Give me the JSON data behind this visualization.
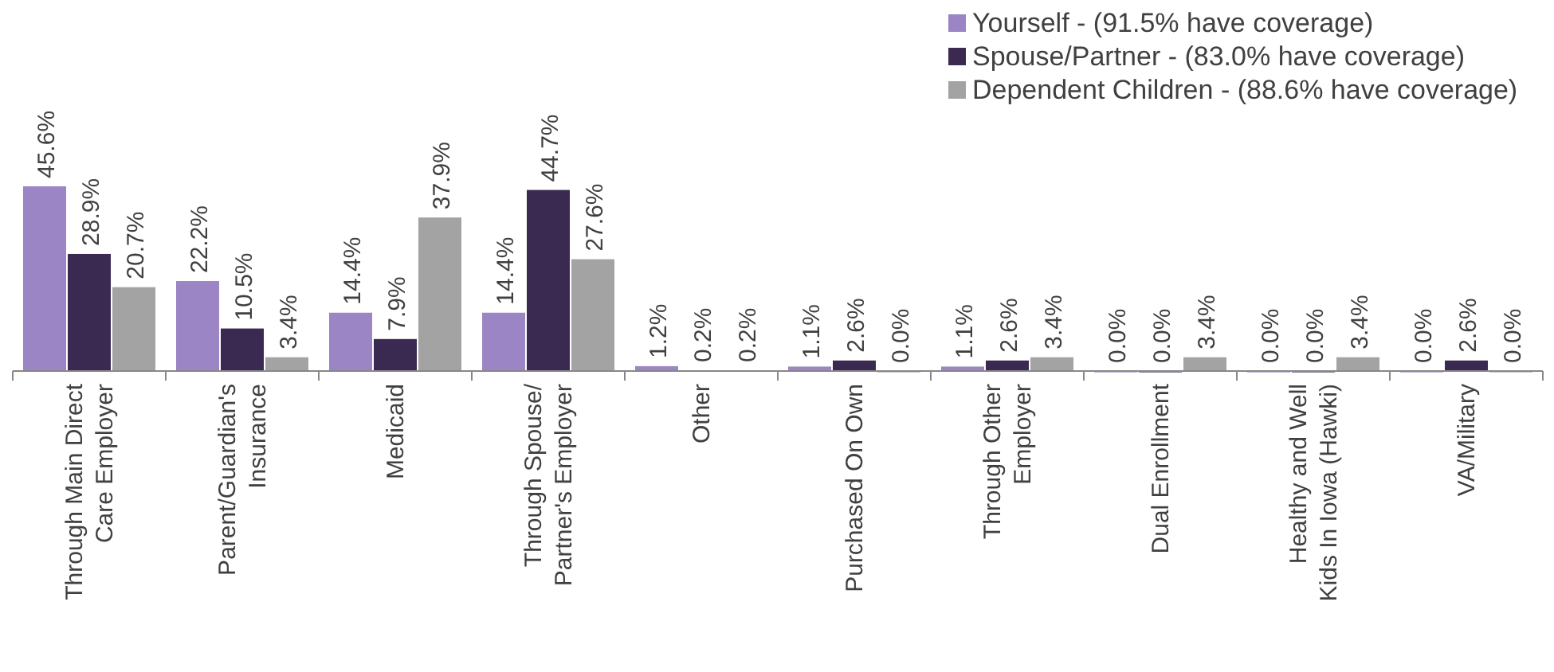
{
  "chart_data": {
    "type": "bar",
    "categories": [
      "Through Main Direct Care Employer",
      "Parent/Guardian's Insurance",
      "Medicaid",
      "Through Spouse/ Partner's Employer",
      "Other",
      "Purchased On Own",
      "Through Other Employer",
      "Dual Enrollment",
      "Healthy and Well Kids In Iowa (Hawki)",
      "VA/Military"
    ],
    "series": [
      {
        "name": "Yourself - (91.5% have coverage)",
        "color": "#9b85c4",
        "values": [
          45.6,
          22.2,
          14.4,
          14.4,
          1.2,
          1.1,
          1.1,
          0.0,
          0.0,
          0.0
        ],
        "value_labels": [
          "45.6%",
          "22.2%",
          "14.4%",
          "14.4%",
          "1.2%",
          "1.1%",
          "1.1%",
          "0.0%",
          "0.0%",
          "0.0%"
        ]
      },
      {
        "name": "Spouse/Partner - (83.0% have coverage)",
        "color": "#3a2a52",
        "values": [
          28.9,
          10.5,
          7.9,
          44.7,
          0.2,
          2.6,
          2.6,
          0.0,
          0.0,
          2.6
        ],
        "value_labels": [
          "28.9%",
          "10.5%",
          "7.9%",
          "44.7%",
          "0.2%",
          "2.6%",
          "2.6%",
          "0.0%",
          "0.0%",
          "2.6%"
        ]
      },
      {
        "name": "Dependent Children - (88.6% have coverage)",
        "color": "#a3a3a3",
        "values": [
          20.7,
          3.4,
          37.9,
          27.6,
          0.2,
          0.0,
          3.4,
          3.4,
          3.4,
          0.0
        ],
        "value_labels": [
          "20.7%",
          "3.4%",
          "37.9%",
          "27.6%",
          "0.2%",
          "0.0%",
          "3.4%",
          "3.4%",
          "3.4%",
          "0.0%"
        ]
      }
    ],
    "legend": "top right"
  }
}
